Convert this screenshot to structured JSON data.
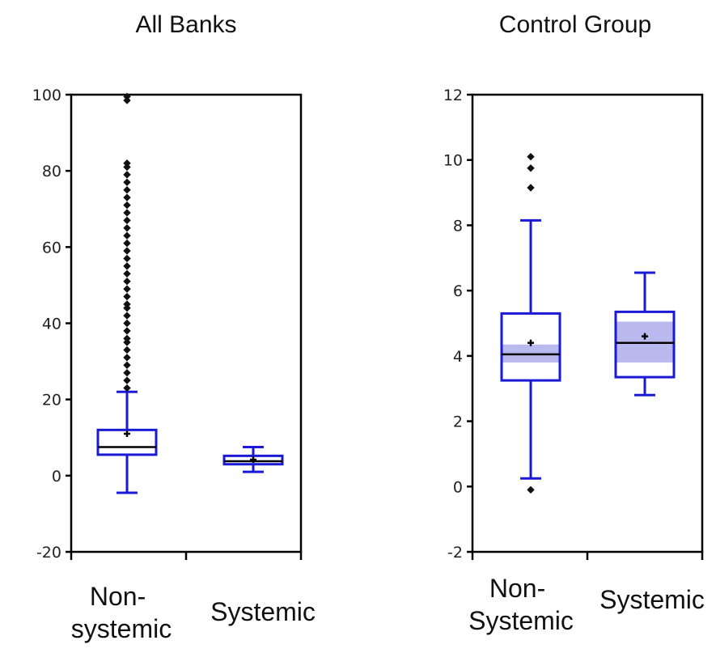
{
  "colors": {
    "box": "#1a1ad6",
    "mean_band": "#b9b9f0",
    "outlier": "#111111",
    "axis": "#000000"
  },
  "chart_data": [
    {
      "type": "box",
      "title": "All Banks",
      "xlabel": "",
      "ylabel": "",
      "ylim": [
        -20,
        100
      ],
      "yticks": [
        -20,
        0,
        20,
        40,
        60,
        80,
        100
      ],
      "categories": [
        "Non-\nsystemic",
        "Systemic"
      ],
      "boxes": [
        {
          "category": "Non-\nsystemic",
          "whisker_low": -4.5,
          "q1": 5.5,
          "median": 7.5,
          "q3": 12,
          "whisker_high": 22,
          "mean": 11,
          "mean_ci": null,
          "outliers": [
            23,
            25,
            27,
            29,
            31,
            33,
            35,
            36,
            38,
            40,
            42,
            44,
            45,
            47,
            49,
            51,
            53,
            55,
            57,
            59,
            61,
            63,
            65,
            67,
            69,
            71,
            73,
            75,
            77,
            79,
            81,
            82,
            98.5,
            99.5
          ]
        },
        {
          "category": "Systemic",
          "whisker_low": 1,
          "q1": 3,
          "median": 3.8,
          "q3": 5.2,
          "whisker_high": 7.5,
          "mean": 4.2,
          "mean_ci": null,
          "outliers": []
        }
      ]
    },
    {
      "type": "box",
      "title": "Control Group",
      "xlabel": "",
      "ylabel": "",
      "ylim": [
        -2,
        12
      ],
      "yticks": [
        -2,
        0,
        2,
        4,
        6,
        8,
        10,
        12
      ],
      "categories": [
        "Non-\nSystemic",
        "Systemic"
      ],
      "boxes": [
        {
          "category": "Non-\nSystemic",
          "whisker_low": 0.25,
          "q1": 3.25,
          "median": 4.05,
          "q3": 5.3,
          "whisker_high": 8.15,
          "mean": 4.4,
          "mean_ci": [
            3.8,
            4.35
          ],
          "outliers": [
            -0.1,
            9.15,
            9.75,
            10.1
          ]
        },
        {
          "category": "Systemic",
          "whisker_low": 2.8,
          "q1": 3.35,
          "median": 4.4,
          "q3": 5.35,
          "whisker_high": 6.55,
          "mean": 4.6,
          "mean_ci": [
            3.8,
            5.05
          ],
          "outliers": []
        }
      ]
    }
  ]
}
